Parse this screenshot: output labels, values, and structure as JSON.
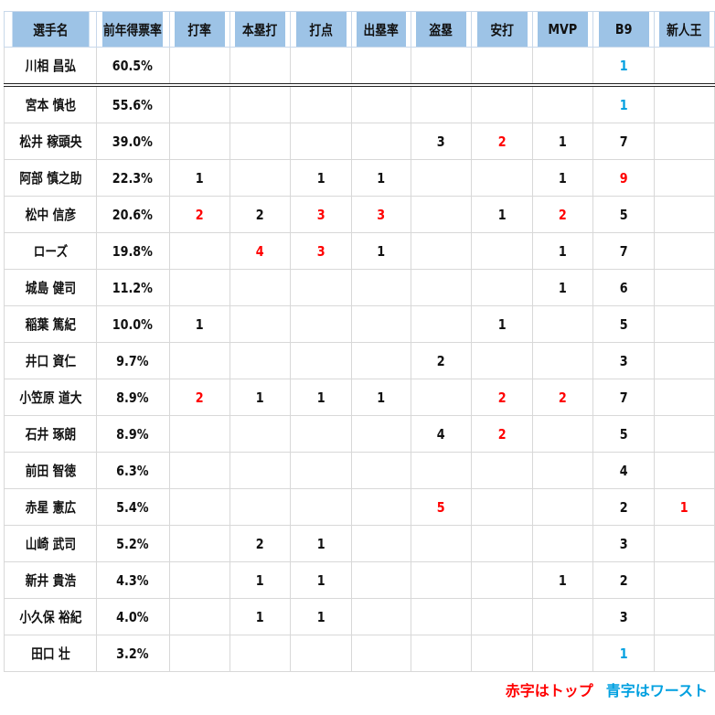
{
  "headers": [
    "選手名",
    "前年得票率",
    "打率",
    "本塁打",
    "打点",
    "出塁率",
    "盗塁",
    "安打",
    "MVP",
    "B9",
    "新人王"
  ],
  "colors": {
    "top": "#ff0000",
    "worst": "#00a0e0"
  },
  "rows": [
    {
      "name": "川相 昌弘",
      "pct": "60.5%",
      "cells": [
        "",
        "",
        "",
        "",
        "",
        "",
        "",
        "1b",
        ""
      ]
    },
    {
      "name": "宮本 慎也",
      "pct": "55.6%",
      "cells": [
        "",
        "",
        "",
        "",
        "",
        "",
        "",
        "1b",
        ""
      ]
    },
    {
      "name": "松井 稼頭央",
      "pct": "39.0%",
      "cells": [
        "",
        "",
        "",
        "",
        "3",
        "2r",
        "1",
        "7",
        ""
      ]
    },
    {
      "name": "阿部 慎之助",
      "pct": "22.3%",
      "cells": [
        "1",
        "",
        "1",
        "1",
        "",
        "",
        "1",
        "9r",
        ""
      ]
    },
    {
      "name": "松中 信彦",
      "pct": "20.6%",
      "cells": [
        "2r",
        "2",
        "3r",
        "3r",
        "",
        "1",
        "2r",
        "5",
        ""
      ]
    },
    {
      "name": "ローズ",
      "pct": "19.8%",
      "cells": [
        "",
        "4r",
        "3r",
        "1",
        "",
        "",
        "1",
        "7",
        ""
      ]
    },
    {
      "name": "城島 健司",
      "pct": "11.2%",
      "cells": [
        "",
        "",
        "",
        "",
        "",
        "",
        "1",
        "6",
        ""
      ]
    },
    {
      "name": "稲葉 篤紀",
      "pct": "10.0%",
      "cells": [
        "1",
        "",
        "",
        "",
        "",
        "1",
        "",
        "5",
        ""
      ]
    },
    {
      "name": "井口 資仁",
      "pct": "9.7%",
      "cells": [
        "",
        "",
        "",
        "",
        "2",
        "",
        "",
        "3",
        ""
      ]
    },
    {
      "name": "小笠原 道大",
      "pct": "8.9%",
      "cells": [
        "2r",
        "1",
        "1",
        "1",
        "",
        "2r",
        "2r",
        "7",
        ""
      ]
    },
    {
      "name": "石井 琢朗",
      "pct": "8.9%",
      "cells": [
        "",
        "",
        "",
        "",
        "4",
        "2r",
        "",
        "5",
        ""
      ]
    },
    {
      "name": "前田 智徳",
      "pct": "6.3%",
      "cells": [
        "",
        "",
        "",
        "",
        "",
        "",
        "",
        "4",
        ""
      ]
    },
    {
      "name": "赤星 憲広",
      "pct": "5.4%",
      "cells": [
        "",
        "",
        "",
        "",
        "5r",
        "",
        "",
        "2",
        "1r"
      ]
    },
    {
      "name": "山崎 武司",
      "pct": "5.2%",
      "cells": [
        "",
        "2",
        "1",
        "",
        "",
        "",
        "",
        "3",
        ""
      ]
    },
    {
      "name": "新井 貴浩",
      "pct": "4.3%",
      "cells": [
        "",
        "1",
        "1",
        "",
        "",
        "",
        "1",
        "2",
        ""
      ]
    },
    {
      "name": "小久保 裕紀",
      "pct": "4.0%",
      "cells": [
        "",
        "1",
        "1",
        "",
        "",
        "",
        "",
        "3",
        ""
      ]
    },
    {
      "name": "田口 壮",
      "pct": "3.2%",
      "cells": [
        "",
        "",
        "",
        "",
        "",
        "",
        "",
        "1b",
        ""
      ]
    }
  ],
  "legend": {
    "top": "赤字はトップ",
    "worst": "青字はワースト"
  }
}
